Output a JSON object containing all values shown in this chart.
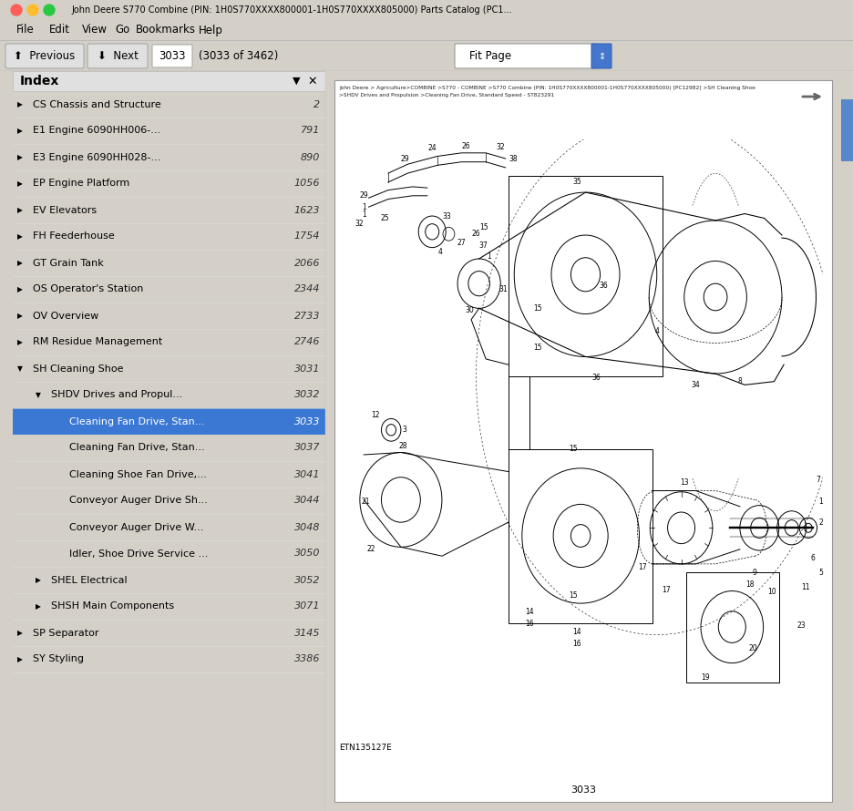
{
  "title_bar": "John Deere S770 Combine (PIN: 1H0S770XXXX800001-1H0S770XXXX805000) Parts Catalog (PC1...",
  "menu_items": [
    "File",
    "Edit",
    "View",
    "Go",
    "Bookmarks",
    "Help"
  ],
  "nav_page": "3033",
  "nav_total": "3033 of 3462",
  "nav_fit": "Fit Page",
  "index_title": "Index",
  "index_items": [
    {
      "label": "CS Chassis and Structure",
      "page": "2",
      "level": 0,
      "collapsed": true
    },
    {
      "label": "E1 Engine 6090HH006-...",
      "page": "791",
      "level": 0,
      "collapsed": true
    },
    {
      "label": "E3 Engine 6090HH028-...",
      "page": "890",
      "level": 0,
      "collapsed": true
    },
    {
      "label": "EP Engine Platform",
      "page": "1056",
      "level": 0,
      "collapsed": true
    },
    {
      "label": "EV Elevators",
      "page": "1623",
      "level": 0,
      "collapsed": true
    },
    {
      "label": "FH Feederhouse",
      "page": "1754",
      "level": 0,
      "collapsed": true
    },
    {
      "label": "GT Grain Tank",
      "page": "2066",
      "level": 0,
      "collapsed": true
    },
    {
      "label": "OS Operator's Station",
      "page": "2344",
      "level": 0,
      "collapsed": true
    },
    {
      "label": "OV Overview",
      "page": "2733",
      "level": 0,
      "collapsed": true
    },
    {
      "label": "RM Residue Management",
      "page": "2746",
      "level": 0,
      "collapsed": true
    },
    {
      "label": "SH Cleaning Shoe",
      "page": "3031",
      "level": 0,
      "collapsed": false
    },
    {
      "label": "SHDV Drives and Propul...",
      "page": "3032",
      "level": 1,
      "collapsed": false
    },
    {
      "label": "Cleaning Fan Drive, Stan...",
      "page": "3033",
      "level": 2,
      "selected": true
    },
    {
      "label": "Cleaning Fan Drive, Stan...",
      "page": "3037",
      "level": 2,
      "selected": false
    },
    {
      "label": "Cleaning Shoe Fan Drive,...",
      "page": "3041",
      "level": 2,
      "selected": false
    },
    {
      "label": "Conveyor Auger Drive Sh...",
      "page": "3044",
      "level": 2,
      "selected": false
    },
    {
      "label": "Conveyor Auger Drive W...",
      "page": "3048",
      "level": 2,
      "selected": false
    },
    {
      "label": "Idler, Shoe Drive Service ...",
      "page": "3050",
      "level": 2,
      "selected": false
    },
    {
      "label": "SHEL Electrical",
      "page": "3052",
      "level": 1,
      "collapsed": true
    },
    {
      "label": "SHSH Main Components",
      "page": "3071",
      "level": 1,
      "collapsed": true
    },
    {
      "label": "SP Separator",
      "page": "3145",
      "level": 0,
      "collapsed": true
    },
    {
      "label": "SY Styling",
      "page": "3386",
      "level": 0,
      "collapsed": true
    }
  ],
  "diagram_breadcrumb_line1": "John Deere > Agriculture>COMBINE >S770 - COMBINE >S770 Combine (PIN: 1H0S770XXXX800001-1H0S770XXXX805000) [PC12982] >SH Cleaning Shoe",
  "diagram_breadcrumb_line2": ">SHDV Drives and Propulsion >Cleaning Fan Drive, Standard Speed - ST823291",
  "diagram_etl": "ETN135127E",
  "diagram_page_num": "3033",
  "bg_color": "#d4d0c8",
  "sidebar_bg": "#f5f5f5",
  "selected_color": "#3b78d4",
  "selected_text_color": "#ffffff",
  "titlebar_bg": "#e8e8e8",
  "traffic_red": "#ff5f57",
  "traffic_yellow": "#ffbd2e",
  "traffic_green": "#28c940",
  "window_bg": "#c8c8c8"
}
